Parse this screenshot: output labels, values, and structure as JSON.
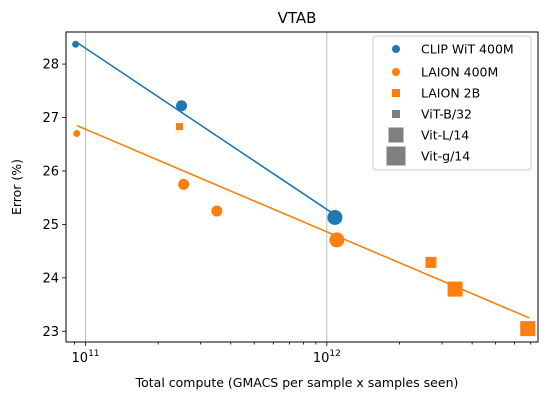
{
  "chart_data": {
    "type": "scatter",
    "title": "VTAB",
    "xlabel": "Total compute (GMACS per sample x samples seen)",
    "ylabel": "Error (%)",
    "xscale": "log",
    "xlim": [
      83000000000.0,
      7500000000000.0
    ],
    "ylim": [
      22.8,
      28.6
    ],
    "x_ticks": [
      {
        "value": 100000000000.0,
        "base": "10",
        "exp": "11"
      },
      {
        "value": 1000000000000.0,
        "base": "10",
        "exp": "12"
      }
    ],
    "y_ticks": [
      23,
      24,
      25,
      26,
      27,
      28
    ],
    "vertical_gridlines": [
      100000000000.0,
      1000000000000.0
    ],
    "legend_position": "top-right",
    "series": [
      {
        "name": "CLIP WiT 400M",
        "color": "#1f77b4",
        "marker": "circle",
        "points": [
          {
            "x": 91000000000.0,
            "y": 28.37,
            "model": "ViT-B/32"
          },
          {
            "x": 250000000000.0,
            "y": 27.22,
            "model": "Vit-L/14"
          },
          {
            "x": 1080000000000.0,
            "y": 25.13,
            "model": "Vit-g/14"
          }
        ],
        "fit": [
          [
            91000000000.0,
            28.42
          ],
          [
            1080000000000.0,
            25.18
          ]
        ]
      },
      {
        "name": "LAION 400M",
        "color": "#ff7f0e",
        "marker": "circle",
        "points": [
          {
            "x": 92000000000.0,
            "y": 26.7,
            "model": "ViT-B/32"
          },
          {
            "x": 255000000000.0,
            "y": 25.75,
            "model": "Vit-L/14"
          },
          {
            "x": 350000000000.0,
            "y": 25.25,
            "model": "Vit-L/14"
          },
          {
            "x": 1100000000000.0,
            "y": 24.71,
            "model": "Vit-g/14"
          }
        ],
        "fit": [
          [
            92000000000.0,
            26.85
          ],
          [
            6900000000000.0,
            23.25
          ]
        ]
      },
      {
        "name": "LAION 2B",
        "color": "#ff7f0e",
        "marker": "square",
        "points": [
          {
            "x": 245000000000.0,
            "y": 26.83,
            "model": "ViT-B/32"
          },
          {
            "x": 2700000000000.0,
            "y": 24.29,
            "model": "Vit-L/14"
          },
          {
            "x": 3400000000000.0,
            "y": 23.79,
            "model": "Vit-g/14"
          },
          {
            "x": 6800000000000.0,
            "y": 23.05,
            "model": "Vit-g/14"
          }
        ]
      }
    ],
    "legend": [
      {
        "label": "CLIP WiT 400M",
        "marker": "circle",
        "color": "#1f77b4",
        "size": "small"
      },
      {
        "label": "LAION 400M",
        "marker": "circle",
        "color": "#ff7f0e",
        "size": "small"
      },
      {
        "label": "LAION 2B",
        "marker": "square",
        "color": "#ff7f0e",
        "size": "small"
      },
      {
        "label": "ViT-B/32",
        "marker": "square",
        "color": "#7f7f7f",
        "size": "small"
      },
      {
        "label": "Vit-L/14",
        "marker": "square",
        "color": "#7f7f7f",
        "size": "medium"
      },
      {
        "label": "Vit-g/14",
        "marker": "square",
        "color": "#7f7f7f",
        "size": "large"
      }
    ]
  }
}
